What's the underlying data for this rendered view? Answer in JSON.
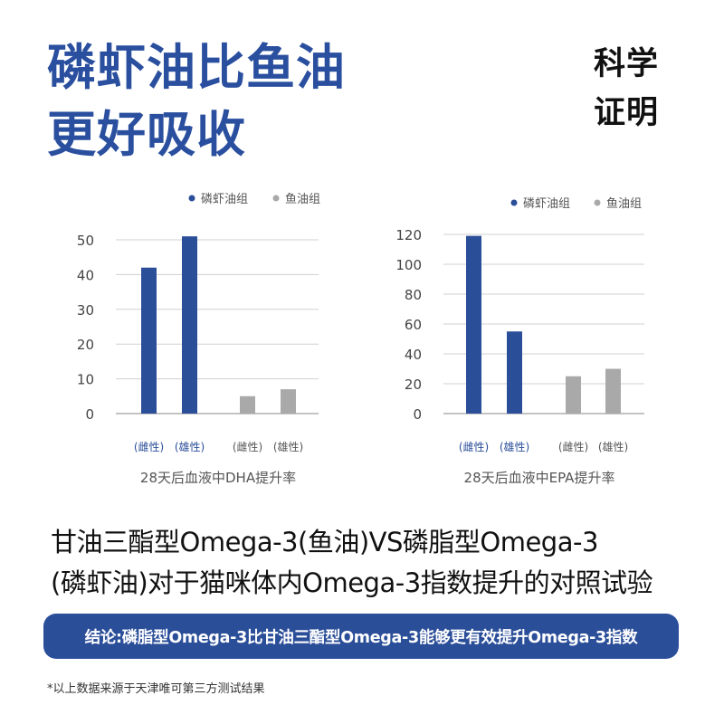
{
  "headline": {
    "line1": "磷虾油比鱼油",
    "line2": "更好吸收"
  },
  "badge": {
    "line1": "科学",
    "line2": "证明"
  },
  "colors": {
    "primary": "#2b4e99",
    "secondary": "#a9a9a9",
    "grid": "#d0d0d0"
  },
  "chart_data": [
    {
      "type": "bar",
      "xlabel": "28天后血液中DHA提升率",
      "categories": [
        "(雌性)",
        "(雄性)",
        "(雌性)",
        "(雄性)"
      ],
      "series": [
        {
          "name": "磷虾油组",
          "values": [
            42,
            51,
            null,
            null
          ]
        },
        {
          "name": "鱼油组",
          "values": [
            null,
            null,
            5,
            7
          ]
        }
      ],
      "ylim": [
        0,
        50
      ],
      "yticks": [
        0,
        10,
        20,
        30,
        40,
        50
      ],
      "grid": true,
      "legend": "top-right"
    },
    {
      "type": "bar",
      "xlabel": "28天后血液中EPA提升率",
      "categories": [
        "(雌性)",
        "(雄性)",
        "(雌性)",
        "(雄性)"
      ],
      "series": [
        {
          "name": "磷虾油组",
          "values": [
            119,
            55,
            null,
            null
          ]
        },
        {
          "name": "鱼油组",
          "values": [
            null,
            null,
            25,
            30
          ]
        }
      ],
      "ylim": [
        0,
        120
      ],
      "yticks": [
        0,
        20,
        40,
        60,
        80,
        100,
        120
      ],
      "grid": true,
      "legend": "top-right"
    }
  ],
  "description": {
    "line1": "甘油三酯型Omega-3(鱼油)VS磷脂型Omega-3",
    "line2": "(磷虾油)对于猫咪体内Omega-3指数提升的对照试验"
  },
  "conclusion": "结论:磷脂型Omega-3比甘油三酯型Omega-3能够更有效提升Omega-3指数",
  "footnote": "*以上数据来源于天津唯可第三方测试结果"
}
